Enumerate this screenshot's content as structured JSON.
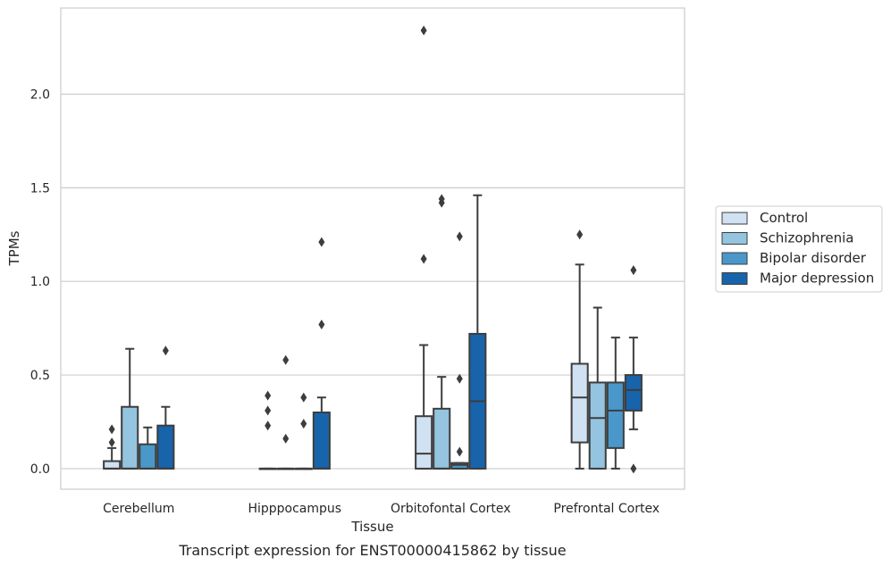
{
  "chart_data": {
    "type": "box",
    "caption": "Transcript expression for ENST00000415862 by tissue",
    "xlabel": "Tissue",
    "ylabel": "TPMs",
    "ylim": [
      -0.11,
      2.46
    ],
    "yticks": [
      0.0,
      0.5,
      1.0,
      1.5,
      2.0
    ],
    "ytick_labels": [
      "0.0",
      "0.5",
      "1.0",
      "1.5",
      "2.0"
    ],
    "grid": "horizontal",
    "legend_placement": "right",
    "categories": [
      "Cerebellum",
      "Hipppocampus",
      "Orbitofontal Cortex",
      "Prefrontal Cortex"
    ],
    "series": [
      {
        "name": "Control",
        "color": "#d0e1f2",
        "boxes": [
          {
            "q1": 0.0,
            "median": 0.0,
            "q3": 0.04,
            "whisker_low": 0.0,
            "whisker_high": 0.11,
            "outliers": [
              0.14,
              0.21
            ]
          },
          {
            "q1": 0.0,
            "median": 0.0,
            "q3": 0.0,
            "whisker_low": 0.0,
            "whisker_high": 0.0,
            "outliers": [
              0.23,
              0.31,
              0.39
            ]
          },
          {
            "q1": 0.0,
            "median": 0.08,
            "q3": 0.28,
            "whisker_low": 0.0,
            "whisker_high": 0.66,
            "outliers": [
              1.12,
              2.34
            ]
          },
          {
            "q1": 0.14,
            "median": 0.38,
            "q3": 0.56,
            "whisker_low": 0.0,
            "whisker_high": 1.09,
            "outliers": [
              1.25
            ]
          }
        ]
      },
      {
        "name": "Schizophrenia",
        "color": "#94c4df",
        "boxes": [
          {
            "q1": 0.0,
            "median": 0.0,
            "q3": 0.33,
            "whisker_low": 0.0,
            "whisker_high": 0.64,
            "outliers": []
          },
          {
            "q1": 0.0,
            "median": 0.0,
            "q3": 0.0,
            "whisker_low": 0.0,
            "whisker_high": 0.0,
            "outliers": [
              0.16,
              0.58
            ]
          },
          {
            "q1": 0.0,
            "median": 0.0,
            "q3": 0.32,
            "whisker_low": 0.0,
            "whisker_high": 0.49,
            "outliers": [
              1.42,
              1.44
            ]
          },
          {
            "q1": 0.0,
            "median": 0.27,
            "q3": 0.46,
            "whisker_low": 0.0,
            "whisker_high": 0.86,
            "outliers": []
          }
        ]
      },
      {
        "name": "Bipolar disorder",
        "color": "#4a98c9",
        "boxes": [
          {
            "q1": 0.0,
            "median": 0.0,
            "q3": 0.13,
            "whisker_low": 0.0,
            "whisker_high": 0.22,
            "outliers": []
          },
          {
            "q1": 0.0,
            "median": 0.0,
            "q3": 0.0,
            "whisker_low": 0.0,
            "whisker_high": 0.0,
            "outliers": [
              0.24,
              0.38
            ]
          },
          {
            "q1": 0.0,
            "median": 0.02,
            "q3": 0.03,
            "whisker_low": 0.0,
            "whisker_high": 0.03,
            "outliers": [
              0.09,
              0.48,
              1.24
            ]
          },
          {
            "q1": 0.11,
            "median": 0.31,
            "q3": 0.46,
            "whisker_low": 0.0,
            "whisker_high": 0.7,
            "outliers": []
          }
        ]
      },
      {
        "name": "Major depression",
        "color": "#1764ab",
        "boxes": [
          {
            "q1": 0.0,
            "median": 0.0,
            "q3": 0.23,
            "whisker_low": 0.0,
            "whisker_high": 0.33,
            "outliers": [
              0.63
            ]
          },
          {
            "q1": 0.0,
            "median": 0.0,
            "q3": 0.3,
            "whisker_low": 0.0,
            "whisker_high": 0.38,
            "outliers": [
              0.77,
              1.21
            ]
          },
          {
            "q1": 0.0,
            "median": 0.36,
            "q3": 0.72,
            "whisker_low": 0.0,
            "whisker_high": 1.46,
            "outliers": []
          },
          {
            "q1": 0.31,
            "median": 0.42,
            "q3": 0.5,
            "whisker_low": 0.21,
            "whisker_high": 0.7,
            "outliers": [
              0.0,
              1.06
            ]
          }
        ]
      }
    ]
  }
}
